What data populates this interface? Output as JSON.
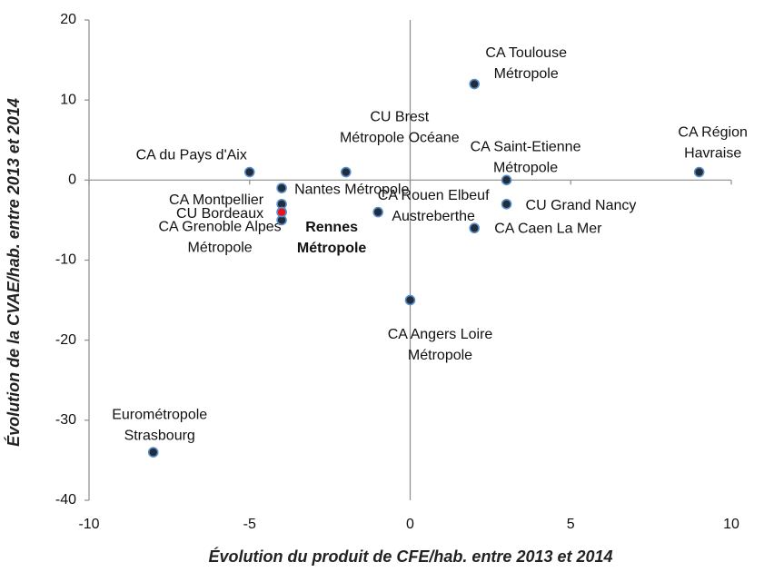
{
  "chart_data": {
    "type": "scatter",
    "xlabel": "Évolution du produit de CFE/hab. entre 2013 et 2014",
    "ylabel": "Évolution de la CVAE/hab. entre 2013 et 2014",
    "xlim": [
      -10,
      10
    ],
    "xticks": [
      -10,
      -5,
      0,
      5,
      10
    ],
    "ylim": [
      -40,
      20
    ],
    "yticks": [
      -40,
      -30,
      -20,
      -10,
      0,
      10,
      20
    ],
    "points": [
      {
        "label": [
          "CA Toulouse",
          "Métropole"
        ],
        "x": 2,
        "y": 12,
        "color": "#1f2d3d"
      },
      {
        "label": [
          "CU Brest",
          "Métropole Océane"
        ],
        "x": -2,
        "y": 1,
        "color": "#1f2d3d"
      },
      {
        "label": [
          "CA Région",
          "Havraise"
        ],
        "x": 9,
        "y": 1,
        "color": "#1f2d3d"
      },
      {
        "label": [
          "CA du Pays d'Aix"
        ],
        "x": -5,
        "y": 1,
        "color": "#1f2d3d"
      },
      {
        "label": [
          "CA Saint-Etienne",
          "Métropole"
        ],
        "x": 3,
        "y": 0,
        "color": "#1f2d3d"
      },
      {
        "label": [
          "Nantes Métropole"
        ],
        "x": -4,
        "y": -1,
        "color": "#1f2d3d"
      },
      {
        "label": [
          "CA Montpellier"
        ],
        "x": -4,
        "y": -3,
        "color": "#1f2d3d"
      },
      {
        "label": [
          "CU Bordeaux"
        ],
        "x": -4,
        "y": -4,
        "color": "#1f2d3d"
      },
      {
        "label": [
          "CA Grenoble Alpes",
          "Métropole"
        ],
        "x": -4,
        "y": -5,
        "color": "#1f2d3d"
      },
      {
        "label": [
          "CA Rouen Elbeuf",
          "Austreberthe"
        ],
        "x": -1,
        "y": -4,
        "color": "#1f2d3d"
      },
      {
        "label": [
          "CU Grand Nancy"
        ],
        "x": 3,
        "y": -3,
        "color": "#1f2d3d"
      },
      {
        "label": [
          "CA Caen La Mer"
        ],
        "x": 2,
        "y": -6,
        "color": "#1f2d3d"
      },
      {
        "label": [
          "CA Angers Loire",
          "Métropole"
        ],
        "x": 0,
        "y": -15,
        "color": "#1f2d3d"
      },
      {
        "label": [
          "Eurométropole",
          "Strasbourg"
        ],
        "x": -8,
        "y": -34,
        "color": "#1f2d3d"
      },
      {
        "label": [
          "Rennes",
          "Métropole"
        ],
        "x": -4,
        "y": -4,
        "color": "#e8141c"
      }
    ]
  }
}
